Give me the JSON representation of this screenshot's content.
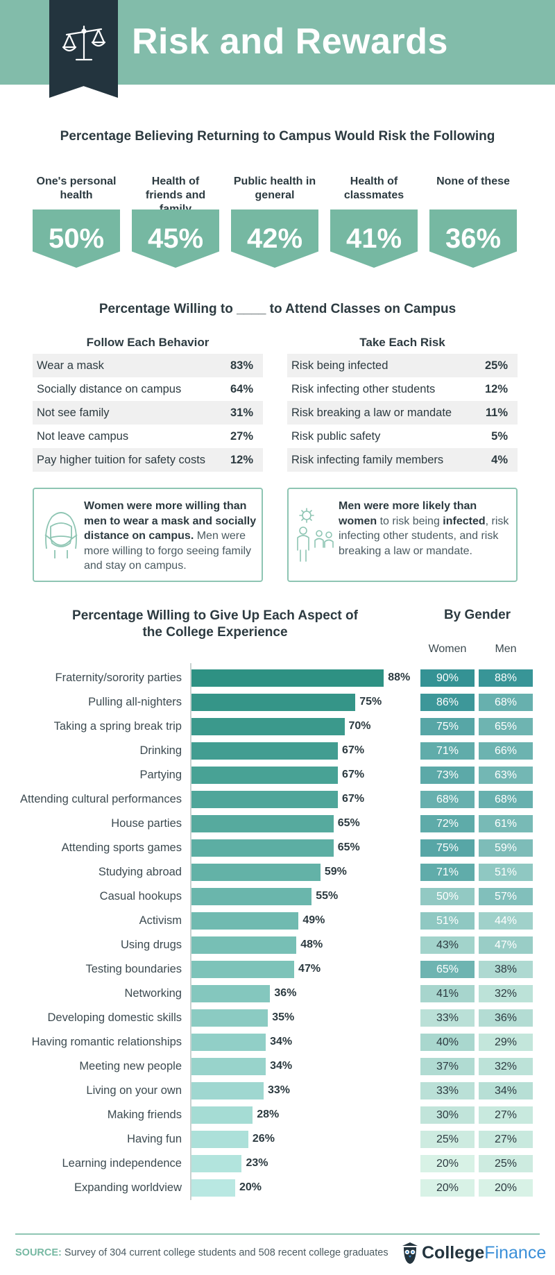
{
  "header": {
    "title": "Risk and Rewards"
  },
  "risk_section": {
    "title": "Percentage Believing Returning to Campus Would Risk the Following",
    "items": [
      {
        "label": "One's personal health",
        "value": "50%"
      },
      {
        "label": "Health of friends and family",
        "value": "45%"
      },
      {
        "label": "Public health in general",
        "value": "42%"
      },
      {
        "label": "Health of classmates",
        "value": "41%"
      },
      {
        "label": "None of these",
        "value": "36%"
      }
    ]
  },
  "willing_section": {
    "title": "Percentage Willing to ____ to Attend Classes on Campus",
    "behavior": {
      "title": "Follow Each Behavior",
      "rows": [
        {
          "label": "Wear a mask",
          "value": "83%"
        },
        {
          "label": "Socially distance on campus",
          "value": "64%"
        },
        {
          "label": "Not see family",
          "value": "31%"
        },
        {
          "label": "Not leave campus",
          "value": "27%"
        },
        {
          "label": "Pay higher tuition for safety costs",
          "value": "12%"
        }
      ]
    },
    "risk": {
      "title": "Take Each Risk",
      "rows": [
        {
          "label": "Risk being infected",
          "value": "25%"
        },
        {
          "label": "Risk infecting other students",
          "value": "12%"
        },
        {
          "label": "Risk breaking a law or mandate",
          "value": "11%"
        },
        {
          "label": "Risk public safety",
          "value": "5%"
        },
        {
          "label": "Risk infecting family members",
          "value": "4%"
        }
      ]
    },
    "callout_women": {
      "bold": "Women were more willing than men to wear a mask and socially distance on campus.",
      "rest": " Men were more willing to forgo seeing family and stay on campus."
    },
    "callout_men": {
      "bold1": "Men were more likely than women",
      "mid1": " to risk being ",
      "bold2": "infected",
      "rest": ", risk infecting other students, and risk breaking a law or mandate."
    }
  },
  "chart_data": {
    "type": "bar",
    "title": "Percentage Willing to Give Up Each Aspect of the College Experience",
    "gender_title": "By Gender",
    "gender_headers": [
      "Women",
      "Men"
    ],
    "categories": [
      "Fraternity/sorority parties",
      "Pulling all-nighters",
      "Taking a spring break trip",
      "Drinking",
      "Partying",
      "Attending cultural performances",
      "House parties",
      "Attending sports games",
      "Studying abroad",
      "Casual hookups",
      "Activism",
      "Using drugs",
      "Testing boundaries",
      "Networking",
      "Developing domestic skills",
      "Having romantic relationships",
      "Meeting new people",
      "Living on your own",
      "Making friends",
      "Having fun",
      "Learning independence",
      "Expanding worldview"
    ],
    "series": [
      {
        "values": [
          88,
          75,
          70,
          67,
          67,
          67,
          65,
          65,
          59,
          55,
          49,
          48,
          47,
          36,
          35,
          34,
          34,
          33,
          28,
          26,
          23,
          20
        ]
      },
      {
        "name": "Women",
        "values": [
          90,
          86,
          75,
          71,
          73,
          68,
          72,
          75,
          71,
          50,
          51,
          43,
          65,
          41,
          33,
          40,
          37,
          33,
          30,
          25,
          20,
          20
        ]
      },
      {
        "name": "Men",
        "values": [
          88,
          68,
          65,
          66,
          63,
          68,
          61,
          59,
          51,
          57,
          44,
          47,
          38,
          32,
          36,
          29,
          32,
          34,
          27,
          27,
          25,
          20
        ]
      }
    ],
    "xlim": [
      0,
      100
    ],
    "value_suffix": "%"
  },
  "footer": {
    "source_label": "SOURCE:",
    "source_text": "Survey of 304 current college students and 508 recent college graduates",
    "logo_bold": "College",
    "logo_light": "Finance"
  },
  "colors": {
    "header_bg": "#82bcaa",
    "accent_dark": "#23343e",
    "badge": "#76b8a2",
    "bar_dark": "#2e9183",
    "bar_light": "#b9e8e2"
  }
}
